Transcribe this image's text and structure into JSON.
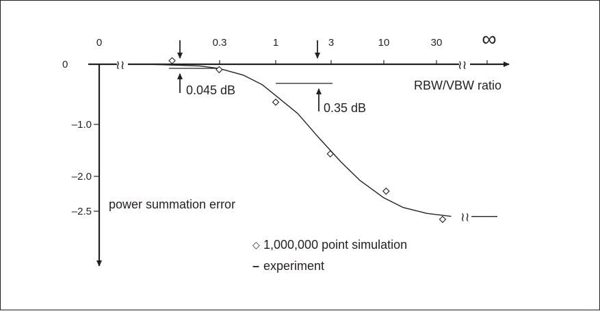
{
  "chart_data": {
    "type": "line",
    "title": "",
    "xlabel": "RBW/VBW ratio",
    "ylabel": "power summation error",
    "xscale": "log",
    "x_ticks": [
      {
        "value": 0,
        "label": "0"
      },
      {
        "value": 0.3,
        "label": "0.3"
      },
      {
        "value": 1,
        "label": "1"
      },
      {
        "value": 3,
        "label": "3"
      },
      {
        "value": 10,
        "label": "10"
      },
      {
        "value": 30,
        "label": "30"
      },
      {
        "value": "inf",
        "label": "∞"
      }
    ],
    "y_ticks": [
      {
        "value": 0,
        "label": "0"
      },
      {
        "value": -1.0,
        "label": "–1.0"
      },
      {
        "value": -2.0,
        "label": "–2.0"
      },
      {
        "value": -2.5,
        "label": "–2.5"
      }
    ],
    "ylim": [
      -3.9,
      0.1
    ],
    "grid": false,
    "legend": {
      "position": "bottom-center",
      "entries": [
        {
          "marker": "◇",
          "text": "1,000,000 point simulation"
        },
        {
          "marker": "–",
          "text": "experiment"
        }
      ]
    },
    "series": [
      {
        "name": "1,000,000 point simulation",
        "style": "diamond-markers",
        "points": [
          {
            "x": 0.11,
            "y": 0.06
          },
          {
            "x": 0.3,
            "y": -0.09
          },
          {
            "x": 1,
            "y": -0.63
          },
          {
            "x": 3.2,
            "y": -1.49
          },
          {
            "x": 10.5,
            "y": -2.11
          },
          {
            "x": 35,
            "y": -2.58
          }
        ]
      },
      {
        "name": "experiment",
        "style": "line",
        "points": [
          {
            "x": 0.065,
            "y": 0.0
          },
          {
            "x": 0.1,
            "y": -0.01
          },
          {
            "x": 0.2,
            "y": -0.03
          },
          {
            "x": 0.3,
            "y": -0.07
          },
          {
            "x": 0.5,
            "y": -0.18
          },
          {
            "x": 0.75,
            "y": -0.34
          },
          {
            "x": 1,
            "y": -0.52
          },
          {
            "x": 1.6,
            "y": -0.82
          },
          {
            "x": 2.5,
            "y": -1.22
          },
          {
            "x": 4,
            "y": -1.62
          },
          {
            "x": 6,
            "y": -1.93
          },
          {
            "x": 10,
            "y": -2.22
          },
          {
            "x": 15,
            "y": -2.38
          },
          {
            "x": 25,
            "y": -2.48
          },
          {
            "x": 42,
            "y": -2.53
          }
        ],
        "asymptote": -2.5
      }
    ],
    "annotations": [
      {
        "text": "0.045 dB",
        "x": 0.13,
        "y": -0.045
      },
      {
        "text": "0.35 dB",
        "x": 2.5,
        "y": -0.35
      }
    ],
    "axis_break_symbol": "≀≀"
  },
  "colors": {
    "ink": "#231f20",
    "background": "#ffffff"
  }
}
